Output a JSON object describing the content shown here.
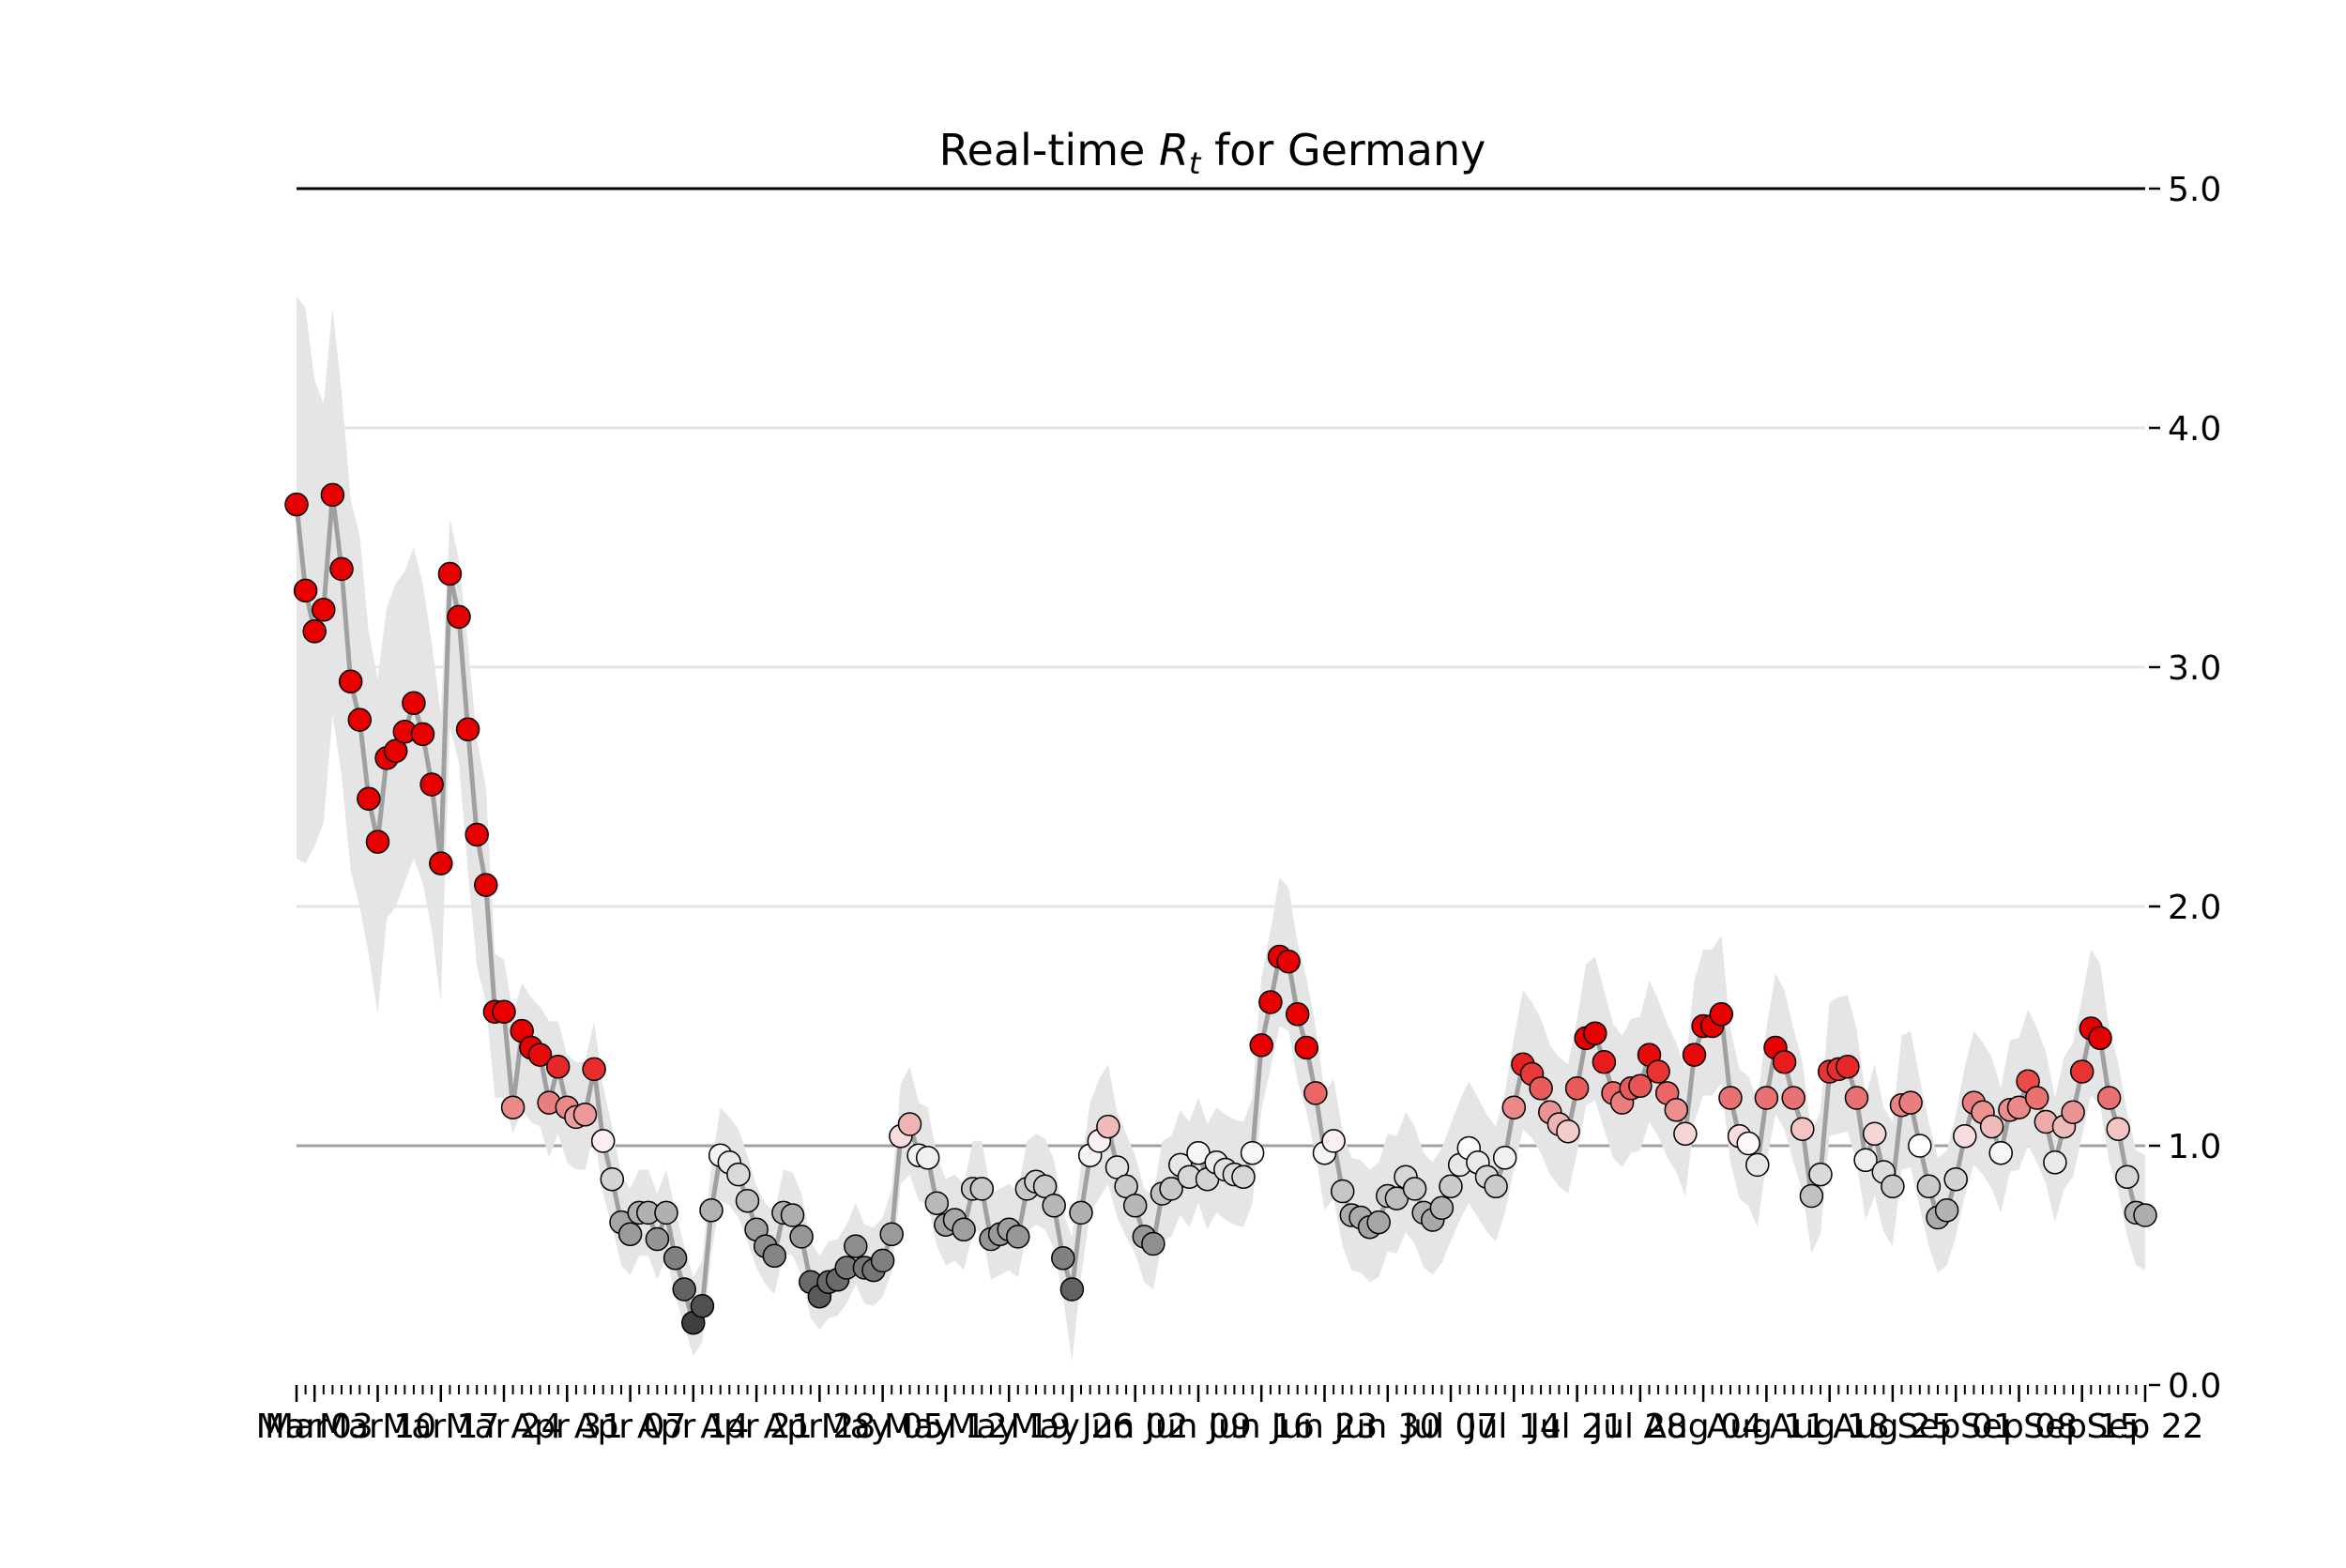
{
  "chart_data": {
    "type": "scatter",
    "title": "Real-time Rₜ for Germany",
    "title_parts": {
      "pre": "Real-time ",
      "var": "R",
      "sub": "t",
      "post": " for Germany"
    },
    "xlabel": "",
    "ylabel": "",
    "ylim": [
      0.0,
      5.0
    ],
    "yticks": [
      "0.0",
      "1.0",
      "2.0",
      "3.0",
      "4.0",
      "5.0"
    ],
    "yaxis_side": "right",
    "grid": "horizontal",
    "reference_line": 1.0,
    "start_date": "2020-03-01",
    "xtick_labels": [
      "Mar",
      "Mar 03",
      "Mar 10",
      "Mar 17",
      "Mar 24",
      "Apr 31",
      "Apr 07",
      "Apr 14",
      "Apr 21",
      "Apr 28",
      "May 05",
      "May 12",
      "May 19",
      "May 26",
      "Jun 02",
      "Jun 09",
      "Jun 16",
      "Jun 23",
      "Jun 30",
      "Jul 07",
      "Jul 14",
      "Jul 21",
      "Jul 28",
      "Aug 04",
      "Aug 11",
      "Aug 18",
      "Aug 25",
      "Sep 01",
      "Sep 08",
      "Sep 15",
      "Sep 22"
    ],
    "series": [
      {
        "values": [
          3.68,
          3.32,
          3.15,
          3.24,
          3.72,
          3.41,
          2.94,
          2.78,
          2.45,
          2.27,
          2.62,
          2.65,
          2.73,
          2.85,
          2.72,
          2.51,
          2.18,
          3.39,
          3.21,
          2.74,
          2.3,
          2.09,
          1.56,
          1.56,
          1.16,
          1.48,
          1.41,
          1.38,
          1.18,
          1.33,
          1.16,
          1.12,
          1.13,
          1.32,
          1.02,
          0.86,
          0.68,
          0.63,
          0.72,
          0.72,
          0.61,
          0.72,
          0.53,
          0.4,
          0.26,
          0.33,
          0.73,
          0.96,
          0.93,
          0.88,
          0.77,
          0.65,
          0.58,
          0.54,
          0.72,
          0.71,
          0.62,
          0.43,
          0.37,
          0.43,
          0.44,
          0.49,
          0.58,
          0.49,
          0.48,
          0.52,
          0.63,
          1.04,
          1.09,
          0.96,
          0.95,
          0.76,
          0.67,
          0.69,
          0.65,
          0.82,
          0.82,
          0.61,
          0.63,
          0.65,
          0.62,
          0.82,
          0.85,
          0.83,
          0.75,
          0.53,
          0.4,
          0.72,
          0.96,
          1.02,
          1.08,
          0.91,
          0.83,
          0.75,
          0.62,
          0.59,
          0.8,
          0.82,
          0.92,
          0.87,
          0.97,
          0.86,
          0.93,
          0.9,
          0.88,
          0.87,
          0.97,
          1.42,
          1.6,
          1.79,
          1.77,
          1.55,
          1.41,
          1.22,
          0.97,
          1.02,
          0.81,
          0.71,
          0.7,
          0.66,
          0.68,
          0.79,
          0.78,
          0.87,
          0.82,
          0.72,
          0.69,
          0.74,
          0.83,
          0.92,
          0.99,
          0.93,
          0.87,
          0.83,
          0.95,
          1.16,
          1.34,
          1.3,
          1.24,
          1.14,
          1.09,
          1.06,
          1.24,
          1.45,
          1.47,
          1.35,
          1.22,
          1.18,
          1.24,
          1.25,
          1.38,
          1.31,
          1.22,
          1.15,
          1.05,
          1.38,
          1.5,
          1.5,
          1.55,
          1.2,
          1.04,
          1.01,
          0.92,
          1.2,
          1.41,
          1.35,
          1.2,
          1.07,
          0.79,
          0.88,
          1.31,
          1.32,
          1.33,
          1.2,
          0.94,
          1.05,
          0.89,
          0.83,
          1.17,
          1.18,
          1.0,
          0.83,
          0.7,
          0.73,
          0.86,
          1.04,
          1.18,
          1.14,
          1.08,
          0.97,
          1.15,
          1.16,
          1.27,
          1.2,
          1.1,
          0.93,
          1.08,
          1.14,
          1.31,
          1.49,
          1.45,
          1.2,
          1.07,
          0.87,
          0.72,
          0.71
        ],
        "lower_90": [
          2.2,
          2.18,
          2.25,
          2.35,
          2.8,
          2.55,
          2.15,
          2.0,
          1.8,
          1.55,
          1.95,
          2.0,
          2.1,
          2.2,
          2.1,
          1.9,
          1.6,
          2.75,
          2.6,
          2.15,
          1.75,
          1.6,
          1.2,
          1.2,
          1.05,
          1.15,
          1.1,
          1.08,
          0.95,
          1.05,
          0.93,
          0.9,
          0.9,
          1.05,
          0.8,
          0.66,
          0.5,
          0.46,
          0.54,
          0.54,
          0.44,
          0.54,
          0.37,
          0.25,
          0.12,
          0.18,
          0.55,
          0.77,
          0.75,
          0.7,
          0.6,
          0.49,
          0.42,
          0.38,
          0.55,
          0.54,
          0.46,
          0.28,
          0.23,
          0.28,
          0.29,
          0.34,
          0.42,
          0.34,
          0.33,
          0.37,
          0.47,
          0.84,
          0.88,
          0.77,
          0.76,
          0.58,
          0.5,
          0.52,
          0.48,
          0.64,
          0.64,
          0.44,
          0.46,
          0.48,
          0.45,
          0.64,
          0.67,
          0.65,
          0.57,
          0.37,
          0.1,
          0.45,
          0.72,
          0.78,
          0.84,
          0.7,
          0.62,
          0.55,
          0.43,
          0.4,
          0.6,
          0.62,
          0.71,
          0.66,
          0.76,
          0.65,
          0.72,
          0.69,
          0.67,
          0.66,
          0.76,
          1.15,
          1.32,
          1.5,
          1.48,
          1.27,
          1.14,
          0.96,
          0.73,
          0.78,
          0.58,
          0.48,
          0.47,
          0.43,
          0.45,
          0.56,
          0.55,
          0.64,
          0.59,
          0.49,
          0.46,
          0.51,
          0.6,
          0.69,
          0.76,
          0.7,
          0.64,
          0.6,
          0.72,
          0.9,
          1.07,
          1.03,
          0.97,
          0.88,
          0.83,
          0.8,
          0.97,
          1.17,
          1.19,
          1.07,
          0.95,
          0.91,
          0.97,
          0.98,
          1.1,
          1.04,
          0.95,
          0.89,
          0.79,
          1.1,
          1.21,
          1.21,
          1.26,
          0.93,
          0.78,
          0.75,
          0.66,
          0.93,
          1.13,
          1.07,
          0.93,
          0.81,
          0.55,
          0.63,
          1.04,
          1.05,
          1.06,
          0.93,
          0.69,
          0.79,
          0.64,
          0.58,
          0.9,
          0.91,
          0.74,
          0.58,
          0.47,
          0.5,
          0.62,
          0.79,
          0.92,
          0.88,
          0.82,
          0.72,
          0.89,
          0.9,
          1.0,
          0.93,
          0.84,
          0.68,
          0.82,
          0.87,
          1.04,
          1.21,
          1.17,
          0.93,
          0.81,
          0.62,
          0.5,
          0.48
        ],
        "upper_90": [
          4.55,
          4.5,
          4.2,
          4.1,
          4.5,
          4.15,
          3.7,
          3.55,
          3.15,
          2.95,
          3.25,
          3.35,
          3.4,
          3.5,
          3.35,
          3.1,
          2.8,
          3.62,
          3.45,
          3.1,
          2.7,
          2.5,
          1.8,
          1.78,
          1.55,
          1.68,
          1.62,
          1.58,
          1.52,
          1.52,
          1.38,
          1.35,
          1.35,
          1.52,
          1.25,
          1.08,
          0.88,
          0.82,
          0.9,
          0.9,
          0.8,
          0.9,
          0.73,
          0.58,
          0.45,
          0.52,
          0.92,
          1.16,
          1.12,
          1.07,
          0.96,
          0.83,
          0.76,
          0.72,
          0.9,
          0.89,
          0.8,
          0.6,
          0.54,
          0.6,
          0.61,
          0.67,
          0.76,
          0.67,
          0.66,
          0.7,
          0.82,
          1.26,
          1.33,
          1.18,
          1.16,
          0.96,
          0.86,
          0.88,
          0.84,
          1.02,
          1.02,
          0.8,
          0.82,
          0.84,
          0.81,
          1.02,
          1.05,
          1.03,
          0.94,
          0.72,
          0.62,
          0.92,
          1.18,
          1.28,
          1.34,
          1.14,
          1.05,
          0.96,
          0.82,
          0.79,
          1.02,
          1.04,
          1.15,
          1.1,
          1.2,
          1.09,
          1.16,
          1.13,
          1.11,
          1.1,
          1.2,
          1.7,
          1.9,
          2.12,
          2.08,
          1.85,
          1.7,
          1.5,
          1.22,
          1.28,
          1.06,
          0.95,
          0.94,
          0.9,
          0.93,
          1.05,
          1.04,
          1.14,
          1.08,
          0.97,
          0.93,
          0.99,
          1.09,
          1.19,
          1.27,
          1.2,
          1.13,
          1.08,
          1.22,
          1.45,
          1.65,
          1.6,
          1.53,
          1.42,
          1.37,
          1.34,
          1.53,
          1.76,
          1.79,
          1.65,
          1.51,
          1.46,
          1.53,
          1.54,
          1.69,
          1.61,
          1.51,
          1.43,
          1.32,
          1.69,
          1.82,
          1.82,
          1.88,
          1.49,
          1.32,
          1.29,
          1.19,
          1.49,
          1.72,
          1.65,
          1.49,
          1.35,
          1.05,
          1.15,
          1.6,
          1.62,
          1.63,
          1.49,
          1.21,
          1.34,
          1.16,
          1.1,
          1.46,
          1.48,
          1.28,
          1.1,
          0.95,
          0.98,
          1.13,
          1.33,
          1.48,
          1.43,
          1.37,
          1.24,
          1.44,
          1.45,
          1.57,
          1.49,
          1.39,
          1.2,
          1.37,
          1.43,
          1.62,
          1.82,
          1.76,
          1.49,
          1.35,
          1.14,
          0.98,
          0.96
        ]
      }
    ]
  },
  "colors": {
    "band": "#e5e5e5",
    "line": "#a0a0a0",
    "grid": "#e5e5e5",
    "reference_line": "#a0a0a0",
    "top_line": "#000000",
    "marker_edge": "#000000",
    "cmap_low": "#000000",
    "cmap_mid_low": "#c8c8c8",
    "cmap_mid": "#ffffff",
    "cmap_mid_high": "#ecaaaa",
    "cmap_high": "#e60000"
  }
}
